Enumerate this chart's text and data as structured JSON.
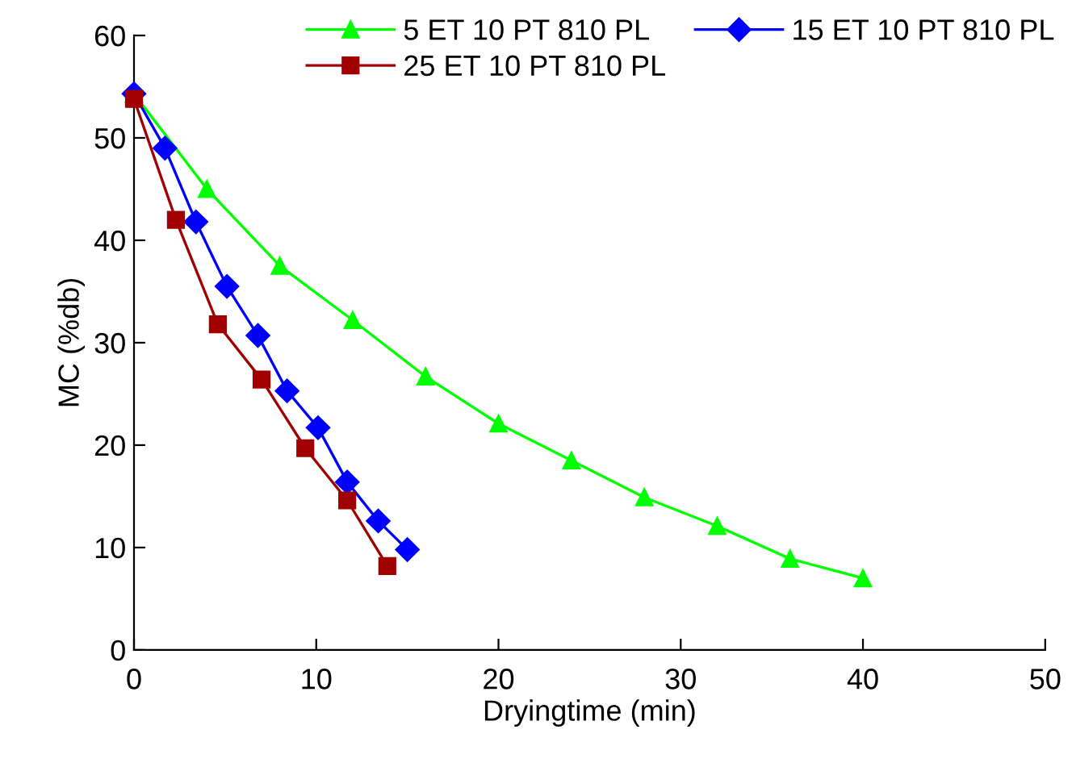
{
  "chart_data": {
    "type": "line",
    "xlabel": "Dryingtime (min)",
    "ylabel": "MC (%db)",
    "xlim": [
      0,
      50
    ],
    "ylim": [
      0,
      60
    ],
    "xticks": [
      0,
      10,
      20,
      30,
      40,
      50
    ],
    "yticks": [
      0,
      10,
      20,
      30,
      40,
      50,
      60
    ],
    "grid": false,
    "legend": "top",
    "series": [
      {
        "name": "5 ET 10 PT 810 PL",
        "color": "#00ff00",
        "marker": "triangle",
        "x": [
          0,
          4,
          8,
          12,
          16,
          20,
          24,
          28,
          32,
          36,
          40
        ],
        "values": [
          54.3,
          45,
          37.5,
          32.2,
          26.7,
          22.1,
          18.5,
          14.9,
          12.1,
          8.9,
          7.0
        ]
      },
      {
        "name": "15 ET 10 PT 810 PL",
        "color": "#0000ff",
        "marker": "diamond",
        "x": [
          0,
          1.7,
          3.4,
          5.1,
          6.8,
          8.4,
          10.1,
          11.7,
          13.4,
          15
        ],
        "values": [
          54.3,
          49,
          41.8,
          35.5,
          30.7,
          25.3,
          21.7,
          16.4,
          12.6,
          9.8
        ]
      },
      {
        "name": "25 ET 10 PT 810 PL",
        "color": "#a00000",
        "marker": "square",
        "x": [
          0,
          2.3,
          4.6,
          7.0,
          9.4,
          11.7,
          13.9
        ],
        "values": [
          53.8,
          42,
          31.8,
          26.4,
          19.7,
          14.6,
          8.2
        ]
      }
    ]
  }
}
